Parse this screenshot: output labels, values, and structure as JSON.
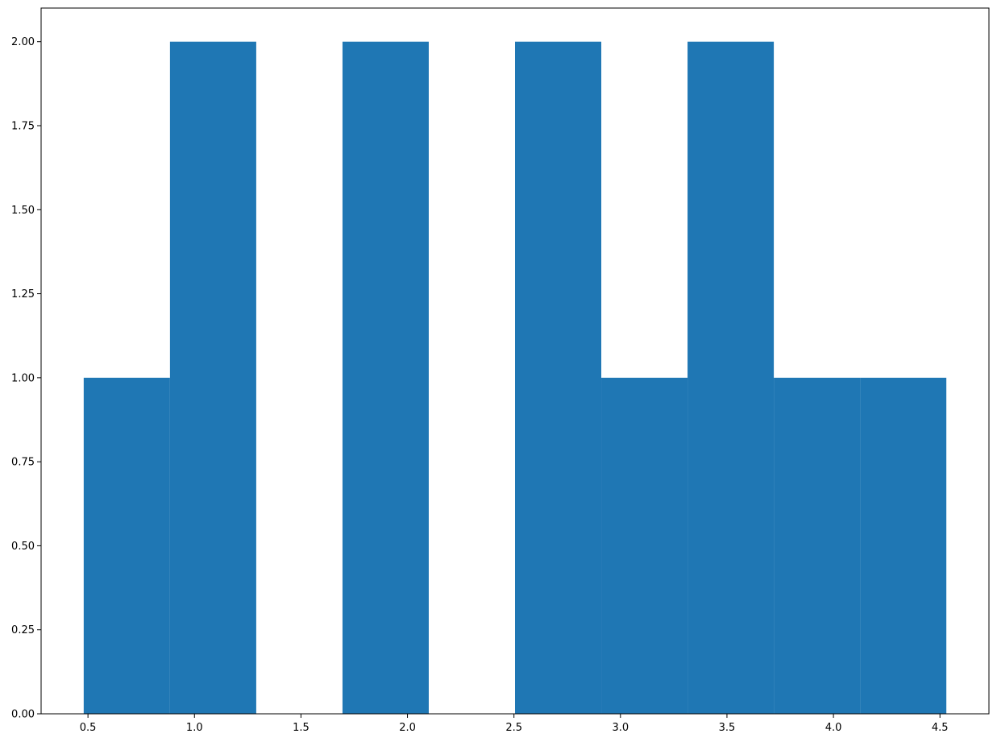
{
  "chart_data": {
    "type": "bar",
    "subtype": "histogram",
    "title": "",
    "xlabel": "",
    "ylabel": "",
    "xlim": [
      0.28,
      4.73
    ],
    "ylim": [
      0,
      2.1
    ],
    "grid": false,
    "legend": "none",
    "bar_color": "#1f77b4",
    "bins": [
      {
        "start": 0.48,
        "end": 0.885,
        "count": 1
      },
      {
        "start": 0.885,
        "end": 1.29,
        "count": 2
      },
      {
        "start": 1.29,
        "end": 1.695,
        "count": 0
      },
      {
        "start": 1.695,
        "end": 2.1,
        "count": 2
      },
      {
        "start": 2.1,
        "end": 2.505,
        "count": 0
      },
      {
        "start": 2.505,
        "end": 2.91,
        "count": 2
      },
      {
        "start": 2.91,
        "end": 3.315,
        "count": 1
      },
      {
        "start": 3.315,
        "end": 3.72,
        "count": 2
      },
      {
        "start": 3.72,
        "end": 4.125,
        "count": 1
      },
      {
        "start": 4.125,
        "end": 4.53,
        "count": 1
      }
    ],
    "x_ticks": [
      {
        "value": 0.5,
        "label": "0.5"
      },
      {
        "value": 1.0,
        "label": "1.0"
      },
      {
        "value": 1.5,
        "label": "1.5"
      },
      {
        "value": 2.0,
        "label": "2.0"
      },
      {
        "value": 2.5,
        "label": "2.5"
      },
      {
        "value": 3.0,
        "label": "3.0"
      },
      {
        "value": 3.5,
        "label": "3.5"
      },
      {
        "value": 4.0,
        "label": "4.0"
      },
      {
        "value": 4.5,
        "label": "4.5"
      }
    ],
    "y_ticks": [
      {
        "value": 0.0,
        "label": "0.00"
      },
      {
        "value": 0.25,
        "label": "0.25"
      },
      {
        "value": 0.5,
        "label": "0.50"
      },
      {
        "value": 0.75,
        "label": "0.75"
      },
      {
        "value": 1.0,
        "label": "1.00"
      },
      {
        "value": 1.25,
        "label": "1.25"
      },
      {
        "value": 1.5,
        "label": "1.50"
      },
      {
        "value": 1.75,
        "label": "1.75"
      },
      {
        "value": 2.0,
        "label": "2.00"
      }
    ]
  }
}
